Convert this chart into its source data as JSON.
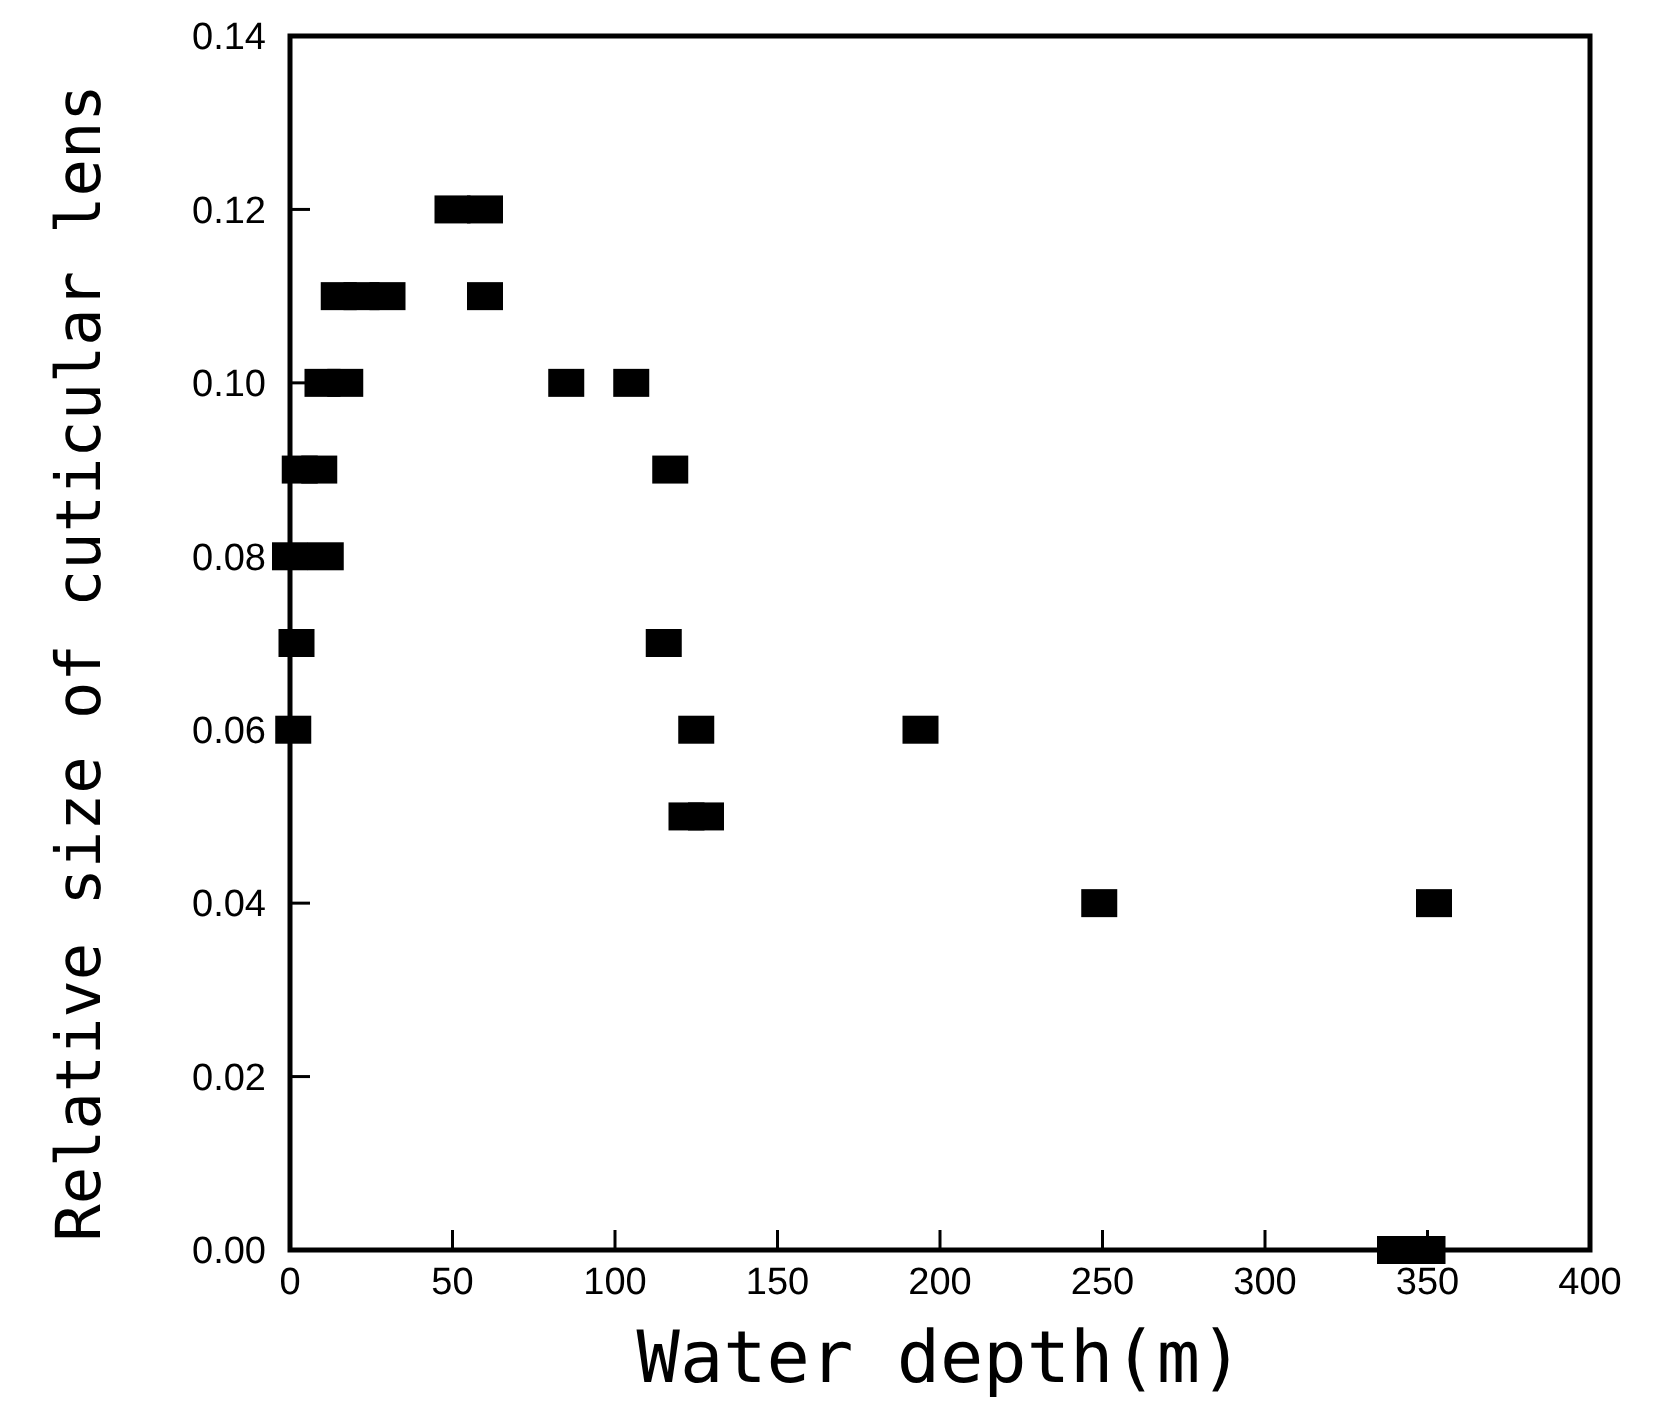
{
  "chart_data": {
    "type": "scatter",
    "xlabel": "Water depth(m)",
    "ylabel": "Relative size of cuticular lens",
    "x": [
      50,
      60,
      15,
      22,
      30,
      60,
      10,
      17,
      85,
      105,
      3,
      9,
      117,
      0,
      11,
      2,
      115,
      1,
      125,
      194,
      122,
      128,
      249,
      352,
      340,
      350
    ],
    "series": [
      {
        "color": "#000000",
        "values": [
          0.12,
          0.12,
          0.11,
          0.11,
          0.11,
          0.11,
          0.1,
          0.1,
          0.1,
          0.1,
          0.09,
          0.09,
          0.09,
          0.08,
          0.08,
          0.07,
          0.07,
          0.06,
          0.06,
          0.06,
          0.05,
          0.05,
          0.04,
          0.04,
          0.0,
          0.0
        ]
      }
    ],
    "xlim": [
      0,
      400
    ],
    "xticks": [
      0,
      50,
      100,
      150,
      200,
      250,
      300,
      350,
      400
    ],
    "ylim": [
      0,
      0.14
    ],
    "yticks": [
      {
        "value": 0,
        "label": "0.00"
      },
      {
        "value": 0.02,
        "label": "0.02"
      },
      {
        "value": 0.04,
        "label": "0.04"
      },
      {
        "value": 0.06,
        "label": "0.06"
      },
      {
        "value": 0.08,
        "label": "0.08"
      },
      {
        "value": 0.1,
        "label": "0.10"
      },
      {
        "value": 0.12,
        "label": "0.12"
      },
      {
        "value": 0.14,
        "label": "0.14"
      }
    ],
    "marker": "square",
    "grid": false
  }
}
